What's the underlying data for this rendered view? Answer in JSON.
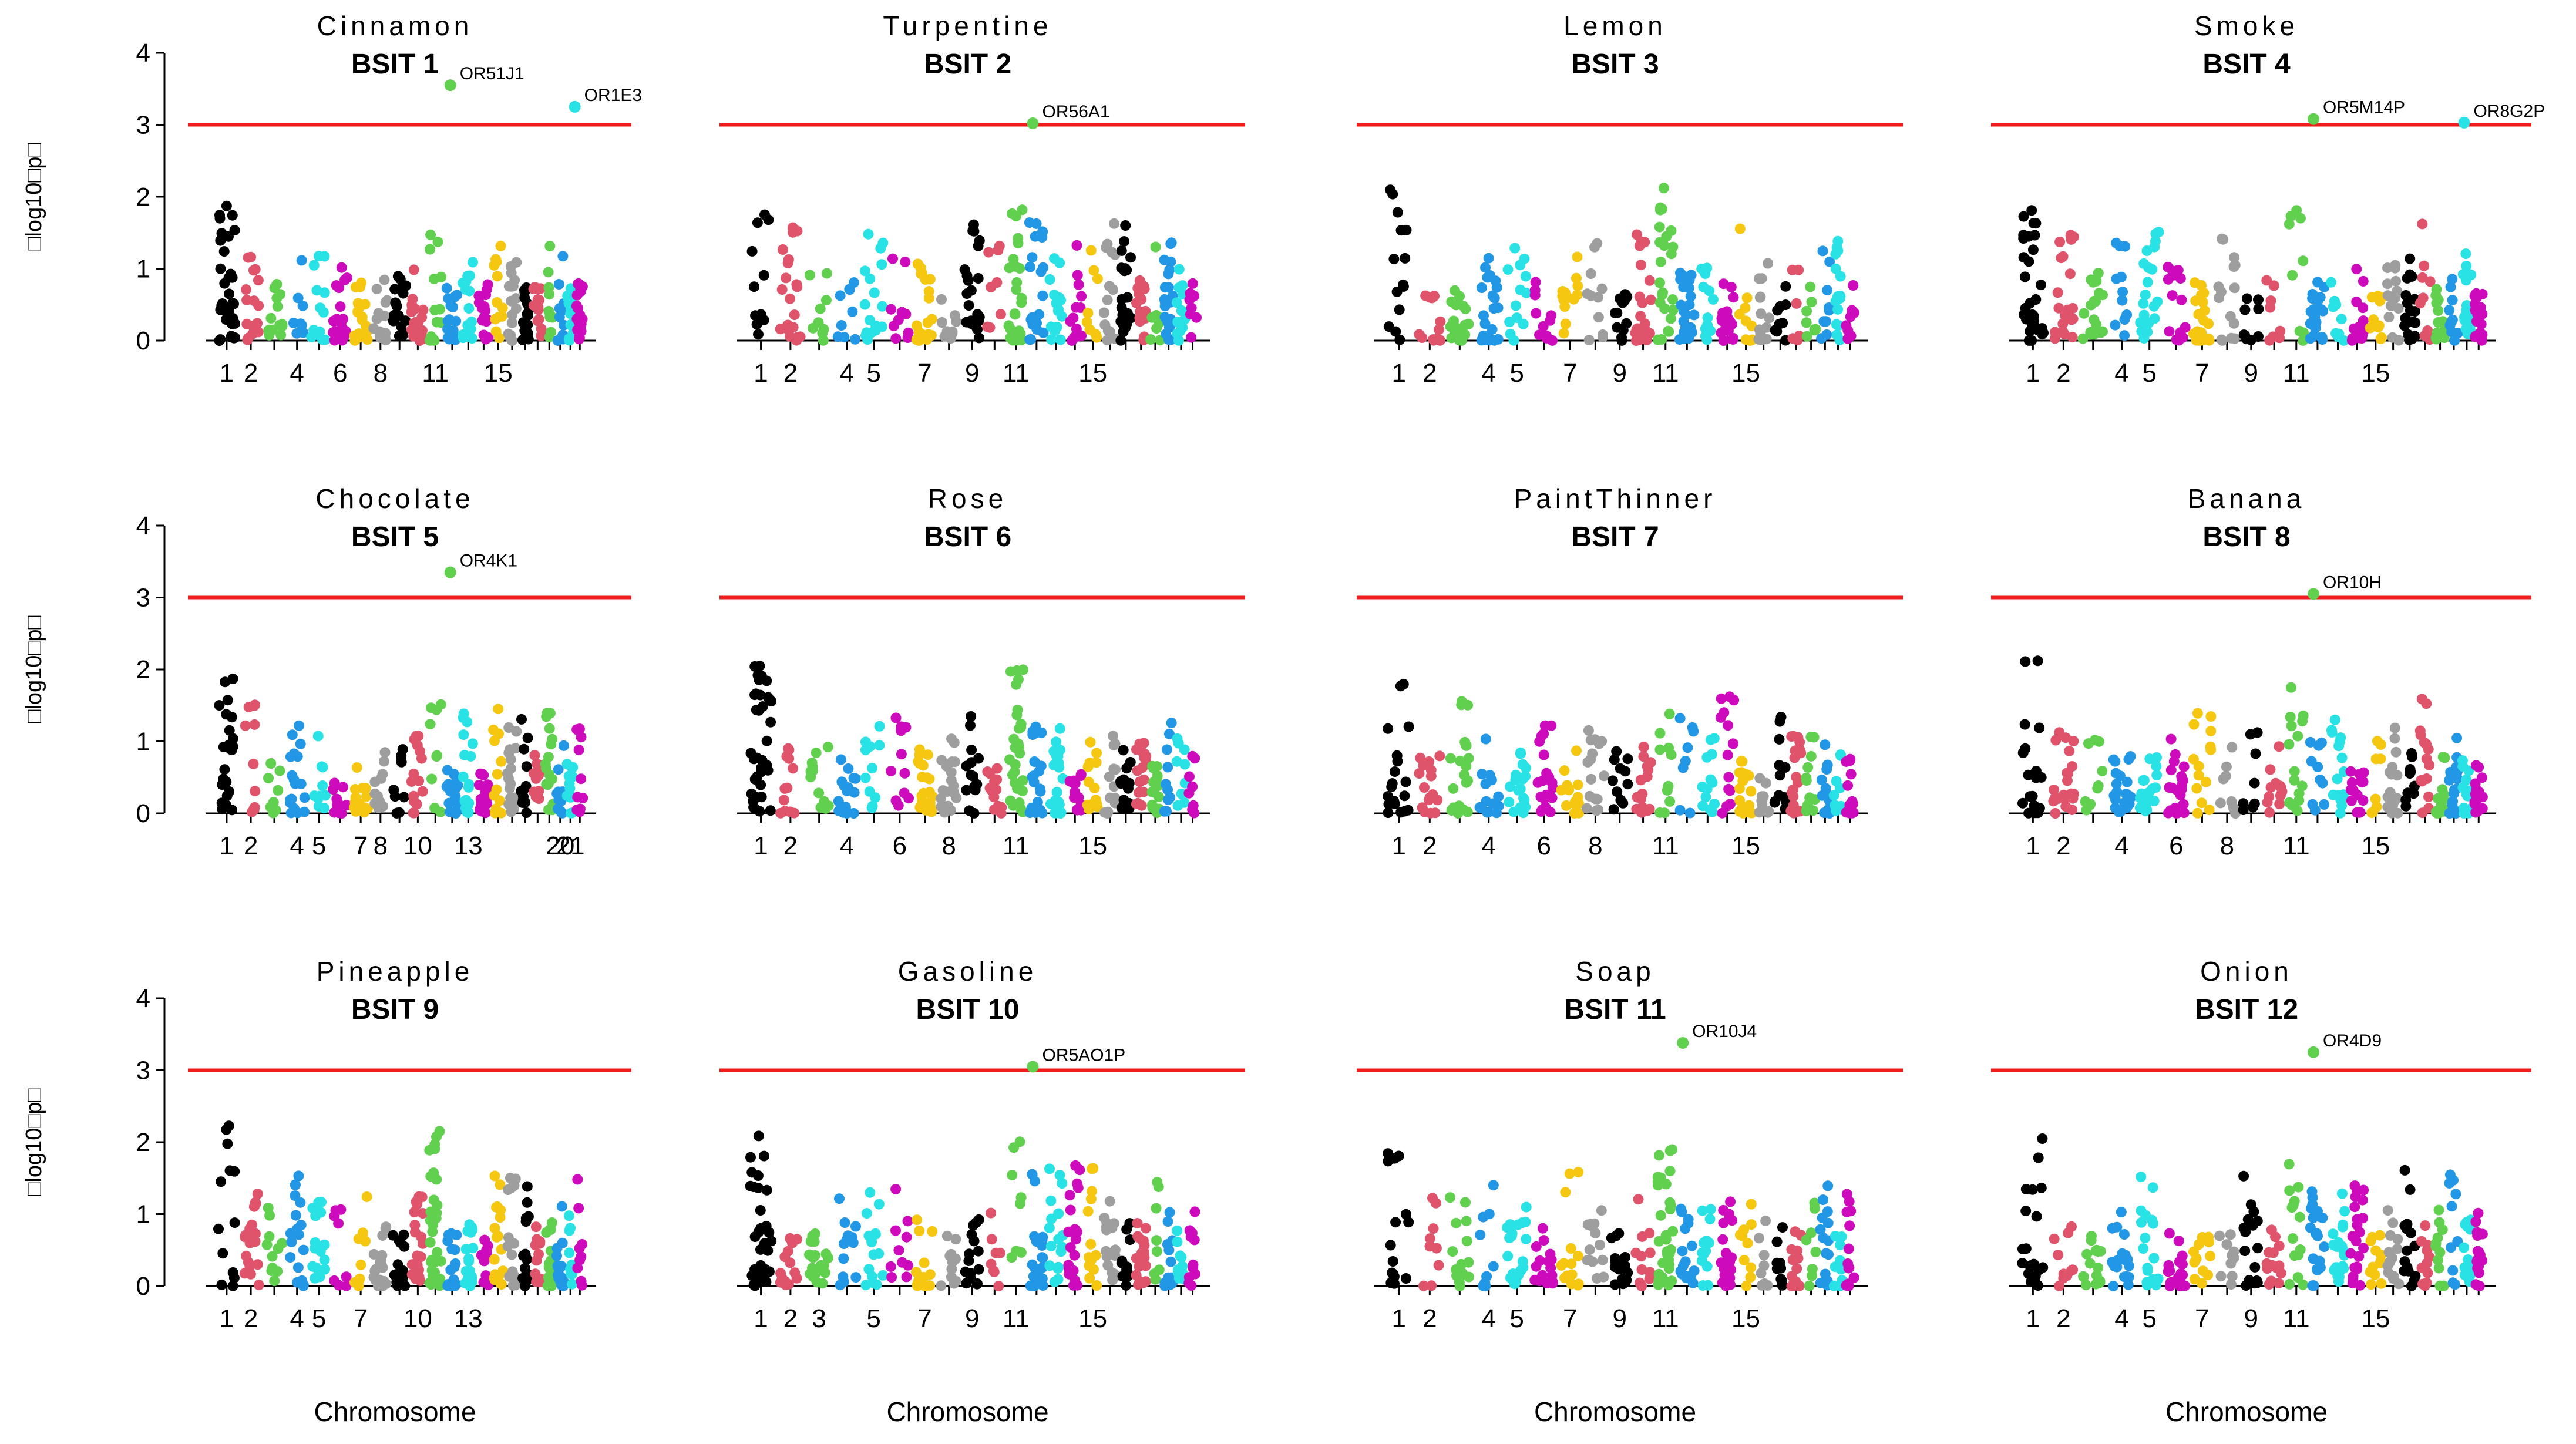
{
  "figure": {
    "ylabel": "□log10□p□",
    "xlabel": "Chromosome",
    "threshold": 3,
    "ylim": [
      0,
      4
    ],
    "yticks": [
      "0",
      "1",
      "2",
      "3",
      "4"
    ]
  },
  "colors": {
    "threshold": "#ee1c1c",
    "palette": [
      "#000000",
      "#df536b",
      "#61d04f",
      "#2297e6",
      "#28e2e5",
      "#cd0bbc",
      "#f5c710",
      "#9e9e9e"
    ]
  },
  "chart_data": [
    {
      "type": "scatter",
      "odor": "Cinnamon",
      "title": "BSIT 1",
      "tick_labels": [
        "1",
        "2",
        "4",
        "6",
        "8",
        "11",
        "15"
      ],
      "annotations": [
        {
          "label": "OR51J1",
          "y": 3.55
        },
        {
          "label": "OR1E3",
          "y": 3.25
        }
      ]
    },
    {
      "type": "scatter",
      "odor": "Turpentine",
      "title": "BSIT 2",
      "tick_labels": [
        "1",
        "2",
        "4",
        "5",
        "7",
        "9",
        "11",
        "15"
      ],
      "annotations": [
        {
          "label": "OR56A1",
          "y": 3.02
        }
      ]
    },
    {
      "type": "scatter",
      "odor": "Lemon",
      "title": "BSIT 3",
      "tick_labels": [
        "1",
        "2",
        "4",
        "5",
        "7",
        "9",
        "11",
        "15"
      ],
      "annotations": []
    },
    {
      "type": "scatter",
      "odor": "Smoke",
      "title": "BSIT 4",
      "tick_labels": [
        "1",
        "2",
        "4",
        "5",
        "7",
        "9",
        "11",
        "15"
      ],
      "annotations": [
        {
          "label": "OR5M14P",
          "y": 3.08
        },
        {
          "label": "OR8G2P",
          "y": 3.03
        }
      ]
    },
    {
      "type": "scatter",
      "odor": "Chocolate",
      "title": "BSIT 5",
      "tick_labels": [
        "1",
        "2",
        "4",
        "5",
        "7",
        "8",
        "10",
        "13",
        "20",
        "21"
      ],
      "annotations": [
        {
          "label": "OR4K1",
          "y": 3.35
        }
      ]
    },
    {
      "type": "scatter",
      "odor": "Rose",
      "title": "BSIT 6",
      "tick_labels": [
        "1",
        "2",
        "4",
        "6",
        "8",
        "11",
        "15"
      ],
      "annotations": []
    },
    {
      "type": "scatter",
      "odor": "PaintThinner",
      "title": "BSIT 7",
      "tick_labels": [
        "1",
        "2",
        "4",
        "6",
        "8",
        "11",
        "15"
      ],
      "annotations": []
    },
    {
      "type": "scatter",
      "odor": "Banana",
      "title": "BSIT 8",
      "tick_labels": [
        "1",
        "2",
        "4",
        "6",
        "8",
        "11",
        "15"
      ],
      "annotations": [
        {
          "label": "OR10H",
          "y": 3.05
        }
      ]
    },
    {
      "type": "scatter",
      "odor": "Pineapple",
      "title": "BSIT 9",
      "tick_labels": [
        "1",
        "2",
        "4",
        "5",
        "7",
        "10",
        "13"
      ],
      "annotations": []
    },
    {
      "type": "scatter",
      "odor": "Gasoline",
      "title": "BSIT 10",
      "tick_labels": [
        "1",
        "2",
        "3",
        "5",
        "7",
        "9",
        "11",
        "15"
      ],
      "annotations": [
        {
          "label": "OR5AO1P",
          "y": 3.05
        }
      ]
    },
    {
      "type": "scatter",
      "odor": "Soap",
      "title": "BSIT 11",
      "tick_labels": [
        "1",
        "2",
        "4",
        "5",
        "7",
        "9",
        "11",
        "15"
      ],
      "annotations": [
        {
          "label": "OR10J4",
          "y": 3.38
        }
      ]
    },
    {
      "type": "scatter",
      "odor": "Onion",
      "title": "BSIT 12",
      "tick_labels": [
        "1",
        "2",
        "4",
        "5",
        "7",
        "9",
        "11",
        "15"
      ],
      "annotations": [
        {
          "label": "OR4D9",
          "y": 3.25
        }
      ]
    }
  ]
}
